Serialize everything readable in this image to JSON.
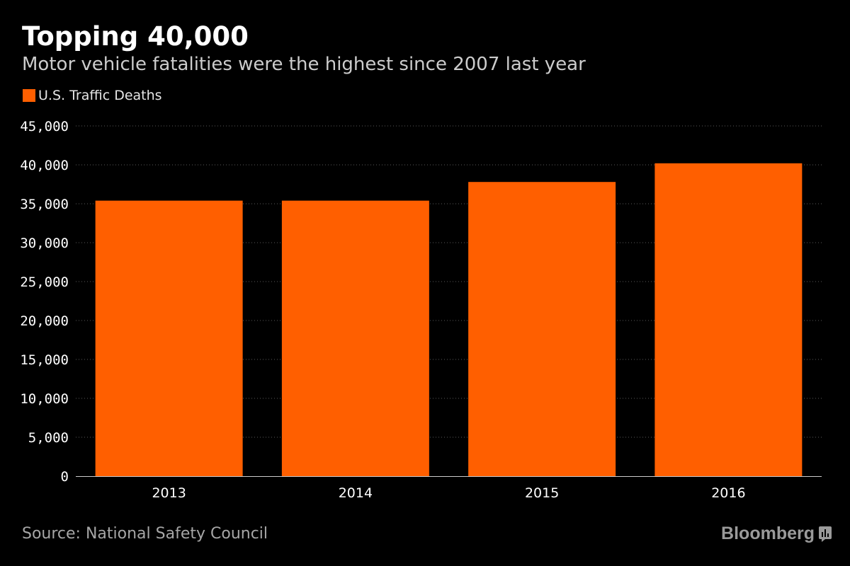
{
  "header": {
    "title": "Topping 40,000",
    "subtitle": "Motor vehicle fatalities were the highest since 2007 last year"
  },
  "footer": {
    "source": "Source: National Safety Council",
    "brand": "Bloomberg"
  },
  "colors": {
    "bar": "#ff5f00",
    "background": "#000000",
    "text": "#ffffff",
    "gridline": "#5a5a5a"
  },
  "chart_data": {
    "type": "bar",
    "title": "Topping 40,000",
    "subtitle": "Motor vehicle fatalities were the highest since 2007 last year",
    "categories": [
      "2013",
      "2014",
      "2015",
      "2016"
    ],
    "series": [
      {
        "name": "U.S. Traffic Deaths",
        "values": [
          35400,
          35400,
          37800,
          40200
        ]
      }
    ],
    "xlabel": "",
    "ylabel": "",
    "ylim": [
      0,
      45000
    ],
    "yticks": [
      0,
      5000,
      10000,
      15000,
      20000,
      25000,
      30000,
      35000,
      40000,
      45000
    ],
    "ytick_labels": [
      "0",
      "5,000",
      "10,000",
      "15,000",
      "20,000",
      "25,000",
      "30,000",
      "35,000",
      "40,000",
      "45,000"
    ],
    "grid": true,
    "legend_position": "top-left"
  }
}
